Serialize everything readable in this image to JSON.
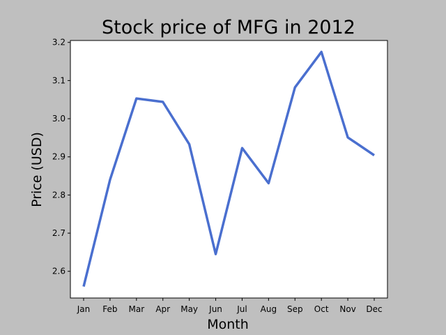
{
  "chart_data": {
    "type": "line",
    "title": "Stock price of MFG in 2012",
    "xlabel": "Month",
    "ylabel": "Price (USD)",
    "categories": [
      "Jan",
      "Feb",
      "Mar",
      "Apr",
      "May",
      "Jun",
      "Jul",
      "Aug",
      "Sep",
      "Oct",
      "Nov",
      "Dec"
    ],
    "series": [
      {
        "values": [
          2.56,
          2.84,
          3.053,
          3.044,
          2.933,
          2.645,
          2.923,
          2.831,
          3.082,
          3.175,
          2.951,
          2.904
        ],
        "color": "#4a6fcf"
      }
    ],
    "yticks": [
      2.6,
      2.7,
      2.8,
      2.9,
      3.0,
      3.1,
      3.2
    ],
    "ytick_labels": [
      "2.6",
      "2.7",
      "2.8",
      "2.9",
      "3.0",
      "3.1",
      "3.2"
    ],
    "ylim": [
      2.53,
      3.205
    ],
    "grid": false,
    "legend": false
  }
}
